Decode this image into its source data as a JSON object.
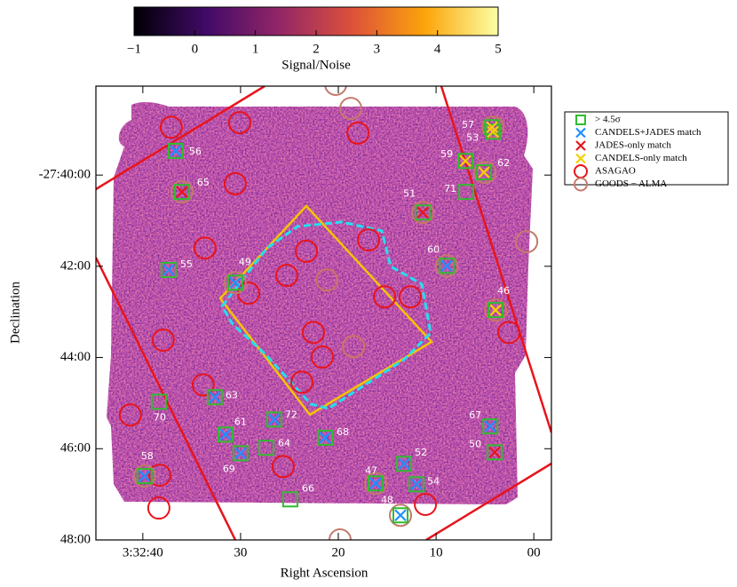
{
  "chart_data": {
    "type": "scatter",
    "xlabel": "Right Ascension",
    "ylabel": "Declination",
    "xlim": [
      44.8,
      -1.8
    ],
    "ylim": [
      48,
      38.05
    ],
    "xticks": [
      {
        "value": 40,
        "label": "3:32:40"
      },
      30,
      20,
      10,
      {
        "value": 0,
        "label": "00"
      }
    ],
    "yticks": [
      {
        "value": 40,
        "label": "-27:40:00"
      },
      {
        "value": 42,
        "label": "42:00"
      },
      {
        "value": 44,
        "label": "44:00"
      },
      {
        "value": 46,
        "label": "46:00"
      },
      {
        "value": 48,
        "label": "48:00"
      }
    ],
    "colorbar": {
      "label": "Signal/Noise",
      "lim": [
        -1,
        5
      ],
      "ticks": [
        {
          "value": -1,
          "label": "−1"
        },
        0,
        1,
        2,
        3,
        4,
        5
      ]
    },
    "legend": "outside upper right",
    "series": [
      {
        "name": "> 4.5σ",
        "marker": "square",
        "color": "#2ebd2e",
        "x": [
          36.64,
          37.36,
          30.55,
          36.0,
          4.27,
          4.18,
          7.0,
          5.09,
          6.91,
          11.36,
          8.91,
          3.91,
          38.36,
          32.64,
          26.55,
          31.55,
          27.36,
          30.0,
          21.36,
          4.45,
          4.0,
          39.82,
          24.91,
          16.18,
          13.27,
          12.0,
          13.64
        ],
        "y": [
          39.47,
          42.08,
          42.36,
          40.37,
          38.95,
          39.05,
          39.69,
          39.94,
          40.37,
          40.82,
          41.99,
          42.96,
          44.97,
          44.87,
          45.36,
          45.69,
          45.98,
          46.1,
          45.76,
          45.51,
          46.08,
          46.6,
          47.11,
          46.76,
          46.33,
          46.78,
          47.46
        ],
        "labels": [
          "56",
          "55",
          "49",
          "65",
          "57",
          "53",
          "59",
          "62",
          "71",
          "51",
          "60",
          "46",
          "70",
          "63",
          "72",
          "61",
          "64",
          "69",
          "68",
          "67",
          "50",
          "58",
          "66",
          "47",
          "52",
          "54",
          "48"
        ]
      },
      {
        "name": "CANDELS+JADES match",
        "marker": "x",
        "color": "#1e90ff",
        "x": [
          36.64,
          37.36,
          30.55,
          8.91,
          32.64,
          26.55,
          31.55,
          30.0,
          21.36,
          4.45,
          39.82,
          16.18,
          13.27,
          12.0,
          13.64
        ],
        "y": [
          39.47,
          42.08,
          42.36,
          41.99,
          44.87,
          45.36,
          45.69,
          46.1,
          45.76,
          45.51,
          46.6,
          46.76,
          46.33,
          46.78,
          47.46
        ]
      },
      {
        "name": "JADES-only match",
        "marker": "x",
        "color": "#e8141b",
        "x": [
          36.0,
          11.36,
          4.0
        ],
        "y": [
          40.37,
          40.82,
          46.08
        ]
      },
      {
        "name": "CANDELS-only match",
        "marker": "x",
        "color": "#f5d000",
        "x": [
          4.27,
          4.18,
          7.0,
          5.09,
          3.91
        ],
        "y": [
          38.95,
          39.05,
          39.69,
          39.94,
          42.96
        ]
      },
      {
        "name": "ASAGAO",
        "marker": "circle",
        "color": "#e8141b",
        "x": [
          37.09,
          30.09,
          18.0,
          30.55,
          33.64,
          16.91,
          23.27,
          25.27,
          29.18,
          21.18,
          15.27,
          12.64,
          37.91,
          22.55,
          18.45,
          21.64,
          23.73,
          33.82,
          41.27,
          38.27,
          25.64,
          38.36,
          11.09,
          2.55,
          11.36,
          4.18,
          3.91
        ],
        "y": [
          38.95,
          38.85,
          39.08,
          40.19,
          41.6,
          41.42,
          41.67,
          42.2,
          42.59,
          42.3,
          42.67,
          42.67,
          43.62,
          43.45,
          43.76,
          43.99,
          44.54,
          44.6,
          45.26,
          46.58,
          46.39,
          47.3,
          47.22,
          43.45,
          40.82,
          38.95,
          42.96
        ]
      },
      {
        "name": "GOODS − ALMA",
        "marker": "circle",
        "color": "#c47a6c",
        "x": [
          20.27,
          18.73,
          0.73,
          4.18,
          5.0,
          36.0,
          11.36,
          8.91,
          3.91,
          30.55,
          21.18,
          18.45,
          39.82,
          16.18,
          13.64,
          19.82
        ],
        "y": [
          38.01,
          38.54,
          41.46,
          38.95,
          39.94,
          40.37,
          40.82,
          41.99,
          42.96,
          42.36,
          42.3,
          43.76,
          46.6,
          46.76,
          47.46,
          48.0
        ]
      }
    ]
  }
}
